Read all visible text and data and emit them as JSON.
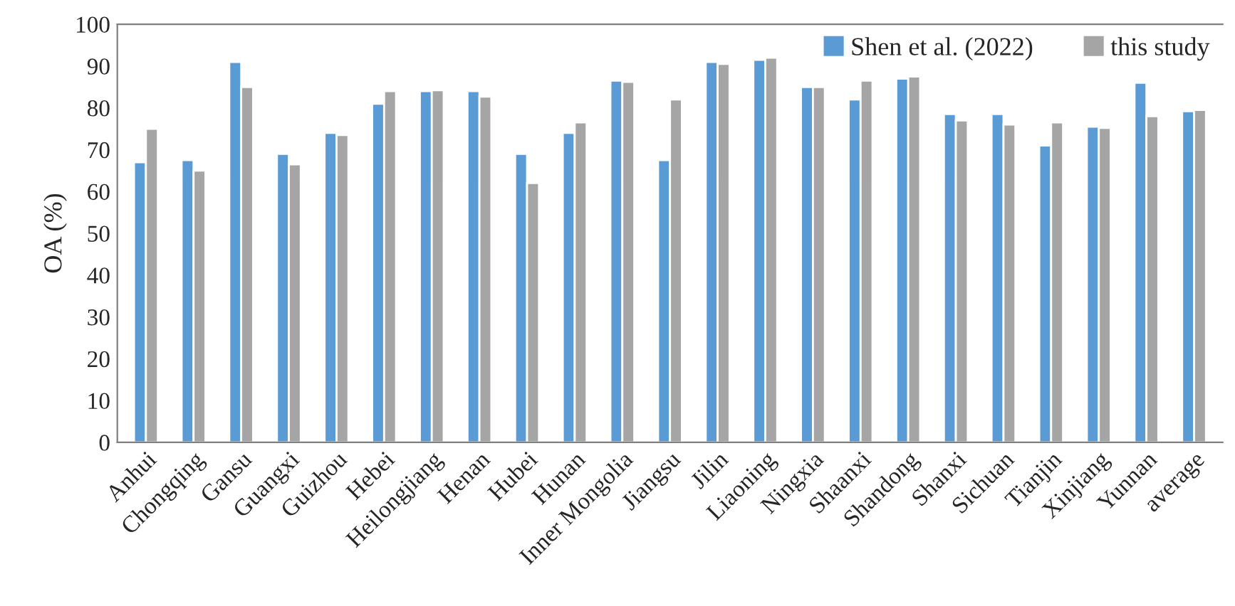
{
  "chart_data": {
    "type": "bar",
    "ylabel": "OA (%)",
    "categories": [
      "Anhui",
      "Chongqing",
      "Gansu",
      "Guangxi",
      "Guizhou",
      "Hebei",
      "Heilongjiang",
      "Henan",
      "Hubei",
      "Hunan",
      "Inner Mongolia",
      "Jiangsu",
      "Jilin",
      "Liaoning",
      "Ningxia",
      "Shaanxi",
      "Shandong",
      "Shanxi",
      "Sichuan",
      "Tianjin",
      "Xinjiang",
      "Yunnan",
      "average"
    ],
    "series": [
      {
        "name": "Shen et al. (2022)",
        "color": "#5b9bd5",
        "values": [
          67,
          67.5,
          91,
          69,
          74,
          81,
          84,
          84,
          69,
          74,
          86.5,
          67.5,
          91,
          91.5,
          85,
          82,
          87,
          78.5,
          78.5,
          71,
          75.5,
          86,
          79.2
        ]
      },
      {
        "name": "this study",
        "color": "#a5a5a5",
        "values": [
          75,
          65,
          85,
          66.5,
          73.5,
          84,
          84.2,
          82.7,
          62,
          76.5,
          86.2,
          82,
          90.5,
          92,
          85,
          86.5,
          87.5,
          77,
          76,
          76.5,
          75.2,
          78,
          79.5
        ]
      }
    ],
    "ylim": [
      0,
      100
    ],
    "yticks": [
      0,
      10,
      20,
      30,
      40,
      50,
      60,
      70,
      80,
      90,
      100
    ],
    "grid": false,
    "legend": "top right"
  }
}
